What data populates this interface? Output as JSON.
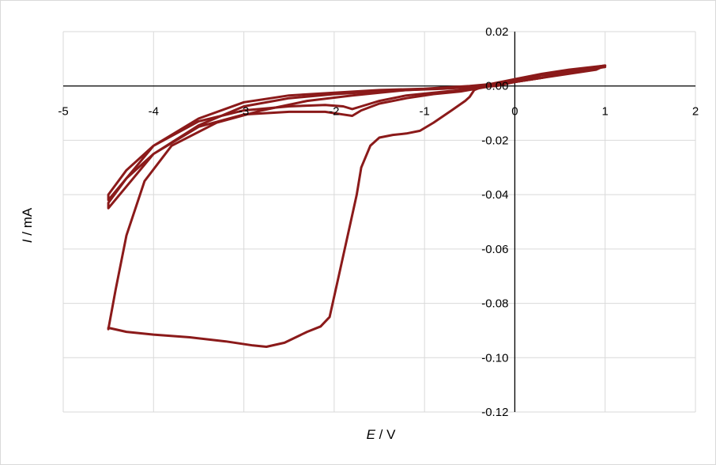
{
  "chart_data": {
    "type": "scatter",
    "subtype": "cyclic-voltammogram",
    "title": "",
    "xlabel_symbol": "E",
    "xlabel_unit": " / V",
    "ylabel_symbol": "I",
    "ylabel_unit": " / mA",
    "xlim": [
      -5,
      2
    ],
    "ylim": [
      -0.12,
      0.02
    ],
    "x_ticks": [
      -5,
      -4,
      -3,
      -2,
      -1,
      0,
      1,
      2
    ],
    "x_tick_labels": [
      "-5",
      "-4",
      "-3",
      "-2",
      "-1",
      "0",
      "1",
      "2"
    ],
    "y_ticks": [
      0.02,
      0,
      -0.02,
      -0.04,
      -0.06,
      -0.08,
      -0.1,
      -0.12
    ],
    "y_tick_labels": [
      "0.02",
      "0.00",
      "-0.02",
      "-0.04",
      "-0.06",
      "-0.08",
      "-0.10",
      "-0.12"
    ],
    "grid": true,
    "legend": "none",
    "series_color": "#8b1a1a",
    "series": [
      {
        "x": [
          0,
          0.3,
          0.6,
          0.9,
          1.0,
          0.6,
          0.3,
          0.0,
          -0.3,
          -0.45,
          -0.5,
          -0.55,
          -0.7,
          -0.9,
          -1.05,
          -1.2,
          -1.35,
          -1.5,
          -1.6,
          -1.7,
          -1.75,
          -1.85,
          -1.95,
          -2.05,
          -2.15,
          -2.3,
          -2.55,
          -2.75,
          -2.9,
          -3.2,
          -3.6,
          -4.0,
          -4.3,
          -4.5,
          -4.5,
          -4.42,
          -4.3,
          -4.1,
          -3.8,
          -3.3,
          -2.8,
          -2.3,
          -1.8,
          -1.5,
          -1.2,
          -0.8,
          -0.5,
          -0.2,
          0.0
        ],
        "y": [
          0.0015,
          0.003,
          0.0045,
          0.006,
          0.0075,
          0.006,
          0.0045,
          0.0025,
          0.0005,
          -0.0015,
          -0.004,
          -0.0055,
          -0.009,
          -0.0135,
          -0.0165,
          -0.0175,
          -0.018,
          -0.019,
          -0.022,
          -0.03,
          -0.04,
          -0.055,
          -0.07,
          -0.085,
          -0.0885,
          -0.0905,
          -0.0945,
          -0.096,
          -0.0955,
          -0.094,
          -0.0925,
          -0.0915,
          -0.0905,
          -0.089,
          -0.0895,
          -0.075,
          -0.055,
          -0.035,
          -0.022,
          -0.0135,
          -0.009,
          -0.0055,
          -0.0035,
          -0.0025,
          -0.0015,
          -0.001,
          -0.0005,
          0.0,
          0.0015
        ]
      },
      {
        "x": [
          0,
          0.3,
          0.6,
          1.0,
          0.6,
          0.3,
          0.0,
          -0.3,
          -0.6,
          -0.9,
          -1.2,
          -1.5,
          -1.7,
          -1.8,
          -1.9,
          -2.1,
          -2.5,
          -3.0,
          -3.5,
          -4.0,
          -4.3,
          -4.5,
          -4.5,
          -4.3,
          -4.0,
          -3.5,
          -3.0,
          -2.5,
          -2.0,
          -1.5,
          -1.0,
          -0.5,
          0.0
        ],
        "y": [
          0.0015,
          0.003,
          0.005,
          0.007,
          0.0055,
          0.004,
          0.002,
          0.0,
          -0.0015,
          -0.0025,
          -0.0035,
          -0.0055,
          -0.0075,
          -0.0085,
          -0.0075,
          -0.007,
          -0.0075,
          -0.009,
          -0.013,
          -0.022,
          -0.031,
          -0.04,
          -0.042,
          -0.034,
          -0.022,
          -0.012,
          -0.006,
          -0.0035,
          -0.0025,
          -0.0015,
          -0.001,
          0.0,
          0.0015
        ]
      },
      {
        "x": [
          0,
          0.3,
          0.6,
          1.0,
          0.6,
          0.3,
          0.0,
          -0.3,
          -0.6,
          -0.9,
          -1.2,
          -1.5,
          -1.7,
          -1.8,
          -1.9,
          -2.1,
          -2.5,
          -3.0,
          -3.5,
          -4.0,
          -4.3,
          -4.5,
          -4.5,
          -4.3,
          -4.0,
          -3.5,
          -3.0,
          -2.5,
          -2.0,
          -1.5,
          -1.0,
          -0.5,
          0.0
        ],
        "y": [
          0.0015,
          0.003,
          0.005,
          0.0075,
          0.0055,
          0.004,
          0.002,
          -0.0003,
          -0.002,
          -0.003,
          -0.0045,
          -0.0065,
          -0.009,
          -0.011,
          -0.0105,
          -0.0095,
          -0.0095,
          -0.0105,
          -0.015,
          -0.025,
          -0.034,
          -0.043,
          -0.045,
          -0.037,
          -0.025,
          -0.0145,
          -0.0075,
          -0.0045,
          -0.003,
          -0.002,
          -0.0012,
          -0.0002,
          0.0015
        ]
      }
    ]
  }
}
